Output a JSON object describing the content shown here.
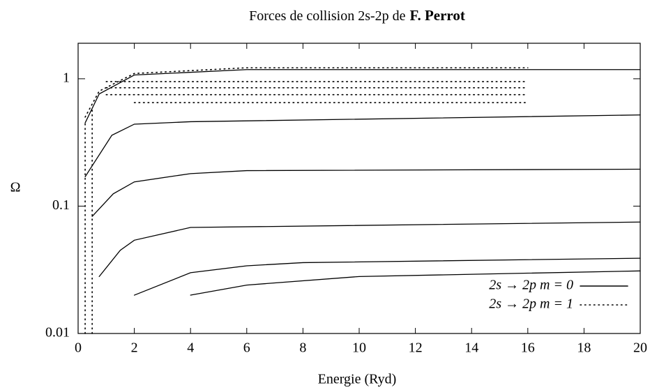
{
  "chart_data": {
    "type": "line",
    "title": [
      "Forces de collision 2s-2p de",
      "F. Perrot"
    ],
    "xlabel": "Energie (Ryd)",
    "ylabel": "Ω",
    "xlim": [
      0,
      20
    ],
    "xticks": [
      0,
      2,
      4,
      6,
      8,
      10,
      12,
      14,
      16,
      18,
      20
    ],
    "ylim": [
      0.01,
      1.9
    ],
    "yticks": [
      0.01,
      0.1,
      1
    ],
    "log_y": true,
    "legend": "lower right",
    "series": [
      {
        "name": "2s → 2p m = 0",
        "style": "solid",
        "color": "#000000",
        "x": [
          0.25,
          0.75,
          2,
          6,
          20
        ],
        "values": [
          0.45,
          0.76,
          1.07,
          1.18,
          1.18
        ]
      },
      {
        "style": "solid",
        "color": "#000000",
        "x": [
          0.25,
          1.2,
          2,
          4,
          20
        ],
        "values": [
          0.17,
          0.36,
          0.44,
          0.46,
          0.52
        ]
      },
      {
        "style": "solid",
        "color": "#000000",
        "x": [
          0.5,
          1.25,
          2,
          4,
          6,
          20
        ],
        "values": [
          0.083,
          0.125,
          0.155,
          0.18,
          0.19,
          0.195
        ]
      },
      {
        "style": "solid",
        "color": "#000000",
        "x": [
          0.75,
          1.5,
          2,
          4,
          20
        ],
        "values": [
          0.028,
          0.045,
          0.054,
          0.068,
          0.075
        ]
      },
      {
        "style": "solid",
        "color": "#000000",
        "x": [
          2,
          4,
          6,
          8,
          20
        ],
        "values": [
          0.02,
          0.03,
          0.034,
          0.036,
          0.039
        ]
      },
      {
        "style": "solid",
        "color": "#000000",
        "x": [
          4,
          6,
          10,
          20
        ],
        "values": [
          0.02,
          0.024,
          0.028,
          0.031
        ]
      },
      {
        "name": "2s → 2p m = 1",
        "style": "dotted",
        "color": "#000000",
        "x": [
          0.25,
          0.75,
          2,
          6,
          16
        ],
        "values": [
          0.5,
          0.8,
          1.1,
          1.22,
          1.22
        ]
      },
      {
        "style": "dotted",
        "color": "#000000",
        "x": [
          0.25,
          0.25
        ],
        "values": [
          0.01,
          0.45
        ]
      },
      {
        "style": "dotted",
        "color": "#000000",
        "x": [
          0.5,
          0.5
        ],
        "values": [
          0.01,
          0.6
        ]
      },
      {
        "style": "dotted",
        "color": "#000000",
        "x": [
          1,
          16
        ],
        "values": [
          0.95,
          0.95
        ]
      },
      {
        "style": "dotted",
        "color": "#000000",
        "x": [
          1,
          16
        ],
        "values": [
          0.85,
          0.85
        ]
      },
      {
        "style": "dotted",
        "color": "#000000",
        "x": [
          1,
          16
        ],
        "values": [
          0.75,
          0.75
        ]
      },
      {
        "style": "dotted",
        "color": "#000000",
        "x": [
          2,
          16
        ],
        "values": [
          0.65,
          0.65
        ]
      }
    ]
  }
}
